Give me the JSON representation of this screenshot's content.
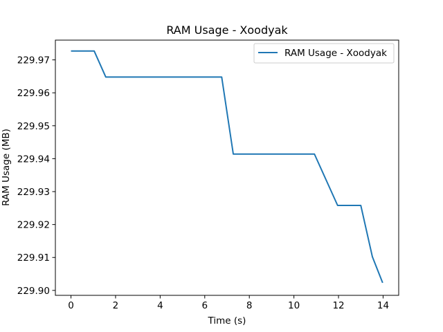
{
  "chart_data": {
    "type": "line",
    "title": "RAM Usage - Xoodyak",
    "xlabel": "Time (s)",
    "ylabel": "RAM Usage (MB)",
    "xlim": [
      -0.7,
      14.7
    ],
    "ylim": [
      229.8985,
      229.976
    ],
    "xticks": [
      0,
      2,
      4,
      6,
      8,
      10,
      12,
      14
    ],
    "xtick_labels": [
      "0",
      "2",
      "4",
      "6",
      "8",
      "10",
      "12",
      "14"
    ],
    "yticks": [
      229.9,
      229.91,
      229.92,
      229.93,
      229.94,
      229.95,
      229.96,
      229.97
    ],
    "ytick_labels": [
      "229.90",
      "229.91",
      "229.92",
      "229.93",
      "229.94",
      "229.95",
      "229.96",
      "229.97"
    ],
    "grid": false,
    "legend_position": "top-right",
    "series": [
      {
        "name": "RAM Usage - Xoodyak",
        "color": "#1f77b4",
        "x": [
          0.0,
          0.52,
          1.04,
          1.56,
          2.08,
          2.6,
          3.12,
          3.64,
          4.16,
          4.68,
          5.2,
          5.72,
          6.24,
          6.76,
          7.28,
          7.8,
          8.32,
          8.84,
          9.36,
          9.88,
          10.4,
          10.92,
          11.44,
          11.96,
          12.48,
          13.0,
          13.52,
          13.98
        ],
        "y": [
          229.9727,
          229.9727,
          229.9727,
          229.9648,
          229.9648,
          229.9648,
          229.9648,
          229.9648,
          229.9648,
          229.9648,
          229.9648,
          229.9648,
          229.9648,
          229.9648,
          229.9414,
          229.9414,
          229.9414,
          229.9414,
          229.9414,
          229.9414,
          229.9414,
          229.9414,
          229.9336,
          229.9258,
          229.9258,
          229.9258,
          229.9102,
          229.9023
        ]
      }
    ]
  }
}
